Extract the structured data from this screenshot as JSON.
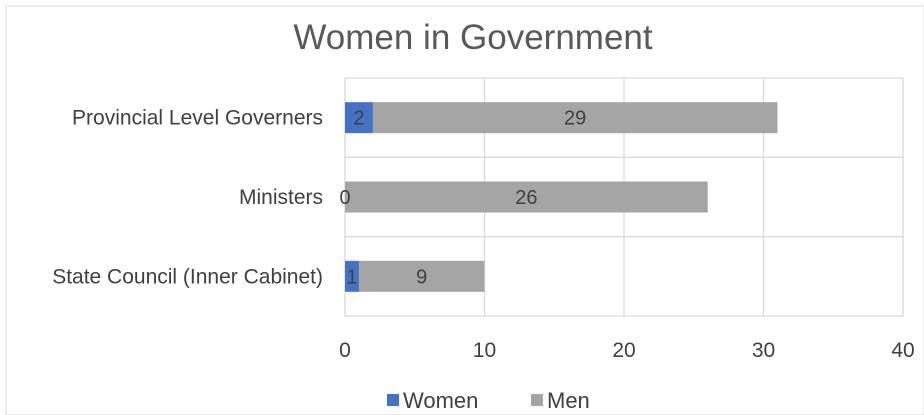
{
  "chart_data": {
    "type": "bar",
    "orientation": "horizontal",
    "stacked": true,
    "title": "Women in Government",
    "xlabel": "",
    "ylabel": "",
    "categories": [
      "Provincial Level Governers",
      "Ministers",
      "State Council (Inner Cabinet)"
    ],
    "series": [
      {
        "name": "Women",
        "values": [
          2,
          0,
          1
        ],
        "color": "#4472C4"
      },
      {
        "name": "Men",
        "values": [
          29,
          26,
          9
        ],
        "color": "#A5A5A5"
      }
    ],
    "xlim": [
      0,
      40
    ],
    "xticks": [
      "0",
      "10",
      "20",
      "30",
      "40"
    ],
    "grid": true,
    "legend": "bottom",
    "data_labels": true
  }
}
